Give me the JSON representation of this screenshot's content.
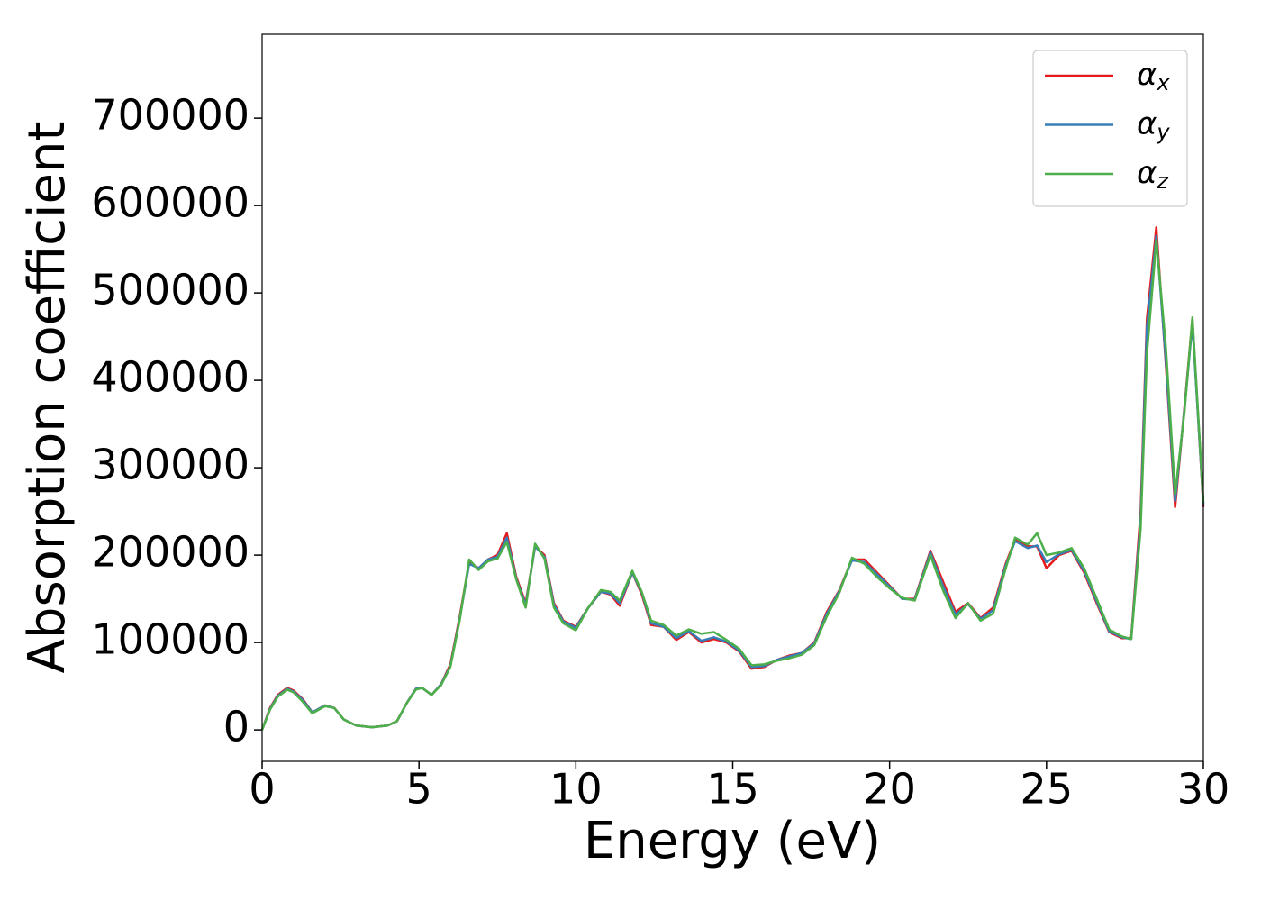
{
  "chart_data": {
    "type": "line",
    "xlabel": "Energy (eV)",
    "ylabel": "Absorption coefficient",
    "x": [
      0,
      0.25,
      0.5,
      0.8,
      1.0,
      1.3,
      1.6,
      2.0,
      2.3,
      2.6,
      3.0,
      3.5,
      4.0,
      4.3,
      4.6,
      4.9,
      5.1,
      5.4,
      5.7,
      6.0,
      6.3,
      6.6,
      6.9,
      7.2,
      7.5,
      7.8,
      8.1,
      8.4,
      8.7,
      9.0,
      9.3,
      9.6,
      10.0,
      10.4,
      10.8,
      11.1,
      11.4,
      11.8,
      12.1,
      12.4,
      12.8,
      13.2,
      13.6,
      14.0,
      14.4,
      14.8,
      15.2,
      15.6,
      16.0,
      16.4,
      16.8,
      17.2,
      17.6,
      18.0,
      18.4,
      18.8,
      19.2,
      19.6,
      20.0,
      20.4,
      20.8,
      21.3,
      21.7,
      22.1,
      22.5,
      22.9,
      23.3,
      23.7,
      24.0,
      24.4,
      24.7,
      25.0,
      25.4,
      25.8,
      26.2,
      26.6,
      27.0,
      27.4,
      27.7,
      28.0,
      28.2,
      28.5,
      28.8,
      29.1,
      29.4,
      29.65,
      30.0
    ],
    "series": [
      {
        "name": "αx",
        "color": "#e41a1c",
        "values": [
          0,
          25000,
          40000,
          48000,
          45000,
          35000,
          20000,
          28000,
          25000,
          12000,
          5000,
          3000,
          5000,
          10000,
          30000,
          47000,
          48000,
          40000,
          52000,
          75000,
          130000,
          192000,
          185000,
          195000,
          200000,
          225000,
          175000,
          145000,
          210000,
          200000,
          145000,
          125000,
          118000,
          140000,
          158000,
          155000,
          142000,
          180000,
          155000,
          120000,
          118000,
          103000,
          112000,
          100000,
          104000,
          100000,
          90000,
          70000,
          72000,
          80000,
          85000,
          88000,
          100000,
          135000,
          160000,
          195000,
          195000,
          180000,
          165000,
          150000,
          150000,
          205000,
          170000,
          135000,
          145000,
          128000,
          140000,
          190000,
          218000,
          210000,
          210000,
          185000,
          200000,
          205000,
          180000,
          145000,
          112000,
          105000,
          105000,
          250000,
          470000,
          575000,
          420000,
          255000,
          370000,
          470000,
          255000
        ]
      },
      {
        "name": "αy",
        "color": "#377eb8",
        "values": [
          0,
          24000,
          39000,
          47000,
          44000,
          34000,
          20000,
          28000,
          25000,
          12000,
          5000,
          3000,
          5000,
          10000,
          30000,
          47000,
          48000,
          40000,
          52000,
          73000,
          128000,
          190000,
          185000,
          195000,
          198000,
          220000,
          173000,
          143000,
          210000,
          198000,
          143000,
          124000,
          117000,
          140000,
          158000,
          156000,
          145000,
          180000,
          157000,
          122000,
          118000,
          105000,
          113000,
          102000,
          106000,
          101000,
          91000,
          72000,
          73000,
          80000,
          84000,
          88000,
          99000,
          133000,
          159000,
          194000,
          192000,
          178000,
          164000,
          150000,
          149000,
          203000,
          165000,
          132000,
          144000,
          127000,
          137000,
          188000,
          216000,
          208000,
          211000,
          192000,
          201000,
          206000,
          182000,
          147000,
          113000,
          106000,
          104000,
          240000,
          460000,
          565000,
          425000,
          262000,
          368000,
          465000,
          258000
        ]
      },
      {
        "name": "αz",
        "color": "#4daf4a",
        "values": [
          0,
          23000,
          38000,
          46000,
          43000,
          32000,
          19000,
          27000,
          25000,
          12000,
          5000,
          3000,
          5000,
          10000,
          30000,
          46000,
          48000,
          40000,
          51000,
          72000,
          126000,
          195000,
          183000,
          193000,
          196000,
          215000,
          172000,
          140000,
          213000,
          196000,
          140000,
          122000,
          114000,
          140000,
          160000,
          158000,
          148000,
          182000,
          158000,
          125000,
          120000,
          108000,
          115000,
          110000,
          112000,
          103000,
          93000,
          74000,
          75000,
          79000,
          82000,
          86000,
          97000,
          130000,
          157000,
          197000,
          190000,
          175000,
          162000,
          151000,
          148000,
          200000,
          160000,
          128000,
          145000,
          125000,
          133000,
          185000,
          220000,
          212000,
          225000,
          200000,
          203000,
          208000,
          185000,
          150000,
          115000,
          107000,
          104000,
          230000,
          430000,
          560000,
          440000,
          270000,
          365000,
          472000,
          260000
        ]
      }
    ],
    "xlim": [
      0,
      30
    ],
    "ylim": [
      -36000,
      796000
    ],
    "xticks": [
      0,
      5,
      10,
      15,
      20,
      25,
      30
    ],
    "yticks": [
      0,
      100000,
      200000,
      300000,
      400000,
      500000,
      600000,
      700000
    ],
    "legend": "upper right"
  }
}
